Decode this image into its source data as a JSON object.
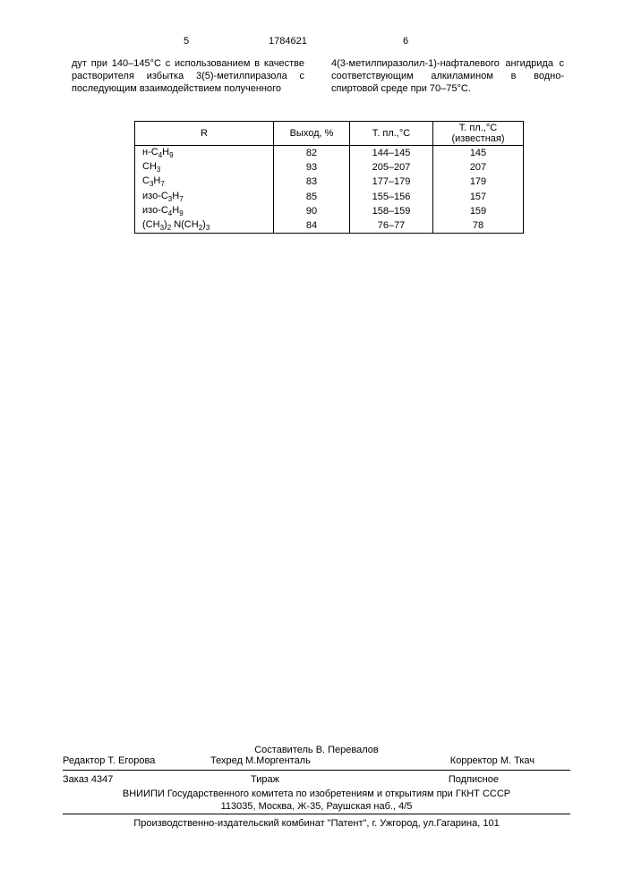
{
  "header": {
    "page_left": "5",
    "doc_number": "1784621",
    "page_right": "6"
  },
  "columns": {
    "left_text": "дут при 140–145°С с использованием в качестве растворителя избытка 3(5)-метилпиразола с последующим взаимодействием полученного",
    "right_text": "4(3-метилпиразолил-1)-нафталевого ангидрида с соответствующим алкиламином в водно-спиртовой среде при 70–75°С."
  },
  "table": {
    "headers": {
      "r": "R",
      "yield": "Выход, %",
      "mp": "Т. пл.,°С",
      "mp_known": "Т. пл.,°С (известная)"
    },
    "rows": [
      {
        "r": "н-C4H9",
        "yield": "82",
        "mp": "144–145",
        "mp_known": "145"
      },
      {
        "r": "CH3",
        "yield": "93",
        "mp": "205–207",
        "mp_known": "207"
      },
      {
        "r": "C3H7",
        "yield": "83",
        "mp": "177–179",
        "mp_known": "179"
      },
      {
        "r": "изо-C3H7",
        "yield": "85",
        "mp": "155–156",
        "mp_known": "157"
      },
      {
        "r": "изо-C4H9",
        "yield": "90",
        "mp": "158–159",
        "mp_known": "159"
      },
      {
        "r": "(CH3)2 N(CH2)3",
        "yield": "84",
        "mp": "76–77",
        "mp_known": "78"
      }
    ]
  },
  "footer": {
    "compiler": "Составитель  В. Перевалов",
    "editor": "Редактор  Т. Егорова",
    "techred": "Техред М.Моргенталь",
    "corrector": "Корректор М. Ткач",
    "order": "Заказ  4347",
    "tirazh": "Тираж",
    "subscription": "Подписное",
    "org_line1": "ВНИИПИ Государственного комитета по изобретениям и открытиям при ГКНТ СССР",
    "org_line2": "113035, Москва, Ж-35, Раушская наб., 4/5",
    "press": "Производственно-издательский комбинат \"Патент\", г. Ужгород, ул.Гагарина, 101"
  }
}
